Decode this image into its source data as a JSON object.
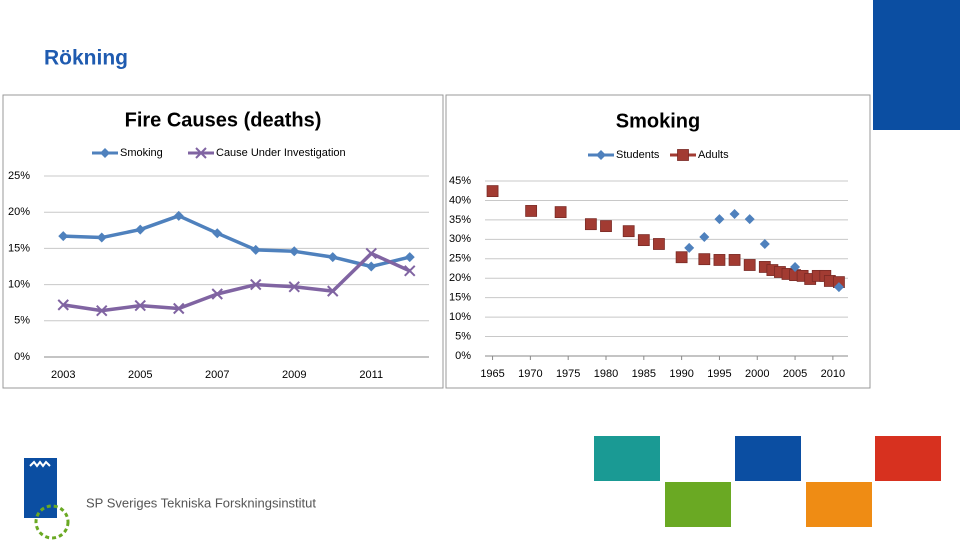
{
  "title": "Rökning",
  "footer": "SP Sveriges Tekniska Forskningsinstitut",
  "chart_data": [
    {
      "type": "line",
      "title": "Fire Causes (deaths)",
      "categories": [
        "2003",
        null,
        "2005",
        null,
        "2007",
        null,
        "2009",
        null,
        "2011",
        null
      ],
      "series": [
        {
          "name": "Smoking",
          "color": "#4f81bd",
          "marker": "diamond",
          "values": [
            16.7,
            16.5,
            17.6,
            19.5,
            17.1,
            14.8,
            14.6,
            13.8,
            12.5,
            13.8
          ]
        },
        {
          "name": "Cause Under Investigation",
          "color": "#8064a2",
          "marker": "x",
          "values": [
            7.2,
            6.4,
            7.1,
            6.7,
            8.7,
            10.0,
            9.7,
            9.1,
            14.3,
            11.9
          ]
        }
      ],
      "ylim": [
        0,
        25
      ],
      "yticks": [
        {
          "value": 0,
          "label": "0%"
        },
        {
          "value": 5,
          "label": "5%"
        },
        {
          "value": 10,
          "label": "10%"
        },
        {
          "value": 15,
          "label": "15%"
        },
        {
          "value": 20,
          "label": "20%"
        },
        {
          "value": 25,
          "label": "25%"
        }
      ],
      "grid": true
    },
    {
      "type": "scatter",
      "title": "Smoking",
      "series": [
        {
          "name": "Students",
          "color": "#4f81bd",
          "marker": "diamond",
          "x": [
            1991,
            1993,
            1995,
            1997,
            1999,
            2001,
            2005,
            2010.8
          ],
          "values": [
            27.8,
            30.6,
            35.2,
            36.5,
            35.2,
            28.8,
            22.9,
            17.7
          ]
        },
        {
          "name": "Adults",
          "color": "#a23b32",
          "marker": "square",
          "x": [
            1965,
            1970.1,
            1974,
            1978,
            1980,
            1983,
            1985,
            1987,
            1990,
            1993,
            1995,
            1997,
            1999,
            2001,
            2002,
            2003,
            2004,
            2005,
            2006,
            2007,
            2008,
            2009,
            2009.6,
            2010.8
          ],
          "values": [
            42.4,
            37.3,
            37.0,
            33.9,
            33.4,
            32.1,
            29.8,
            28.8,
            25.4,
            24.9,
            24.7,
            24.7,
            23.4,
            22.9,
            22.1,
            21.6,
            21.1,
            20.8,
            20.6,
            19.8,
            20.6,
            20.6,
            19.3,
            19.0
          ]
        }
      ],
      "xlim": [
        1964,
        2012
      ],
      "xticks": [
        1965,
        1970,
        1975,
        1980,
        1985,
        1990,
        1995,
        2000,
        2005,
        2010
      ],
      "ylim": [
        0,
        45
      ],
      "yticks": [
        {
          "value": 0,
          "label": "0%"
        },
        {
          "value": 5,
          "label": "5%"
        },
        {
          "value": 10,
          "label": "10%"
        },
        {
          "value": 15,
          "label": "15%"
        },
        {
          "value": 20,
          "label": "20%"
        },
        {
          "value": 25,
          "label": "25%"
        },
        {
          "value": 30,
          "label": "30%"
        },
        {
          "value": 35,
          "label": "35%"
        },
        {
          "value": 40,
          "label": "40%"
        },
        {
          "value": 45,
          "label": "45%"
        }
      ],
      "grid": true
    }
  ]
}
